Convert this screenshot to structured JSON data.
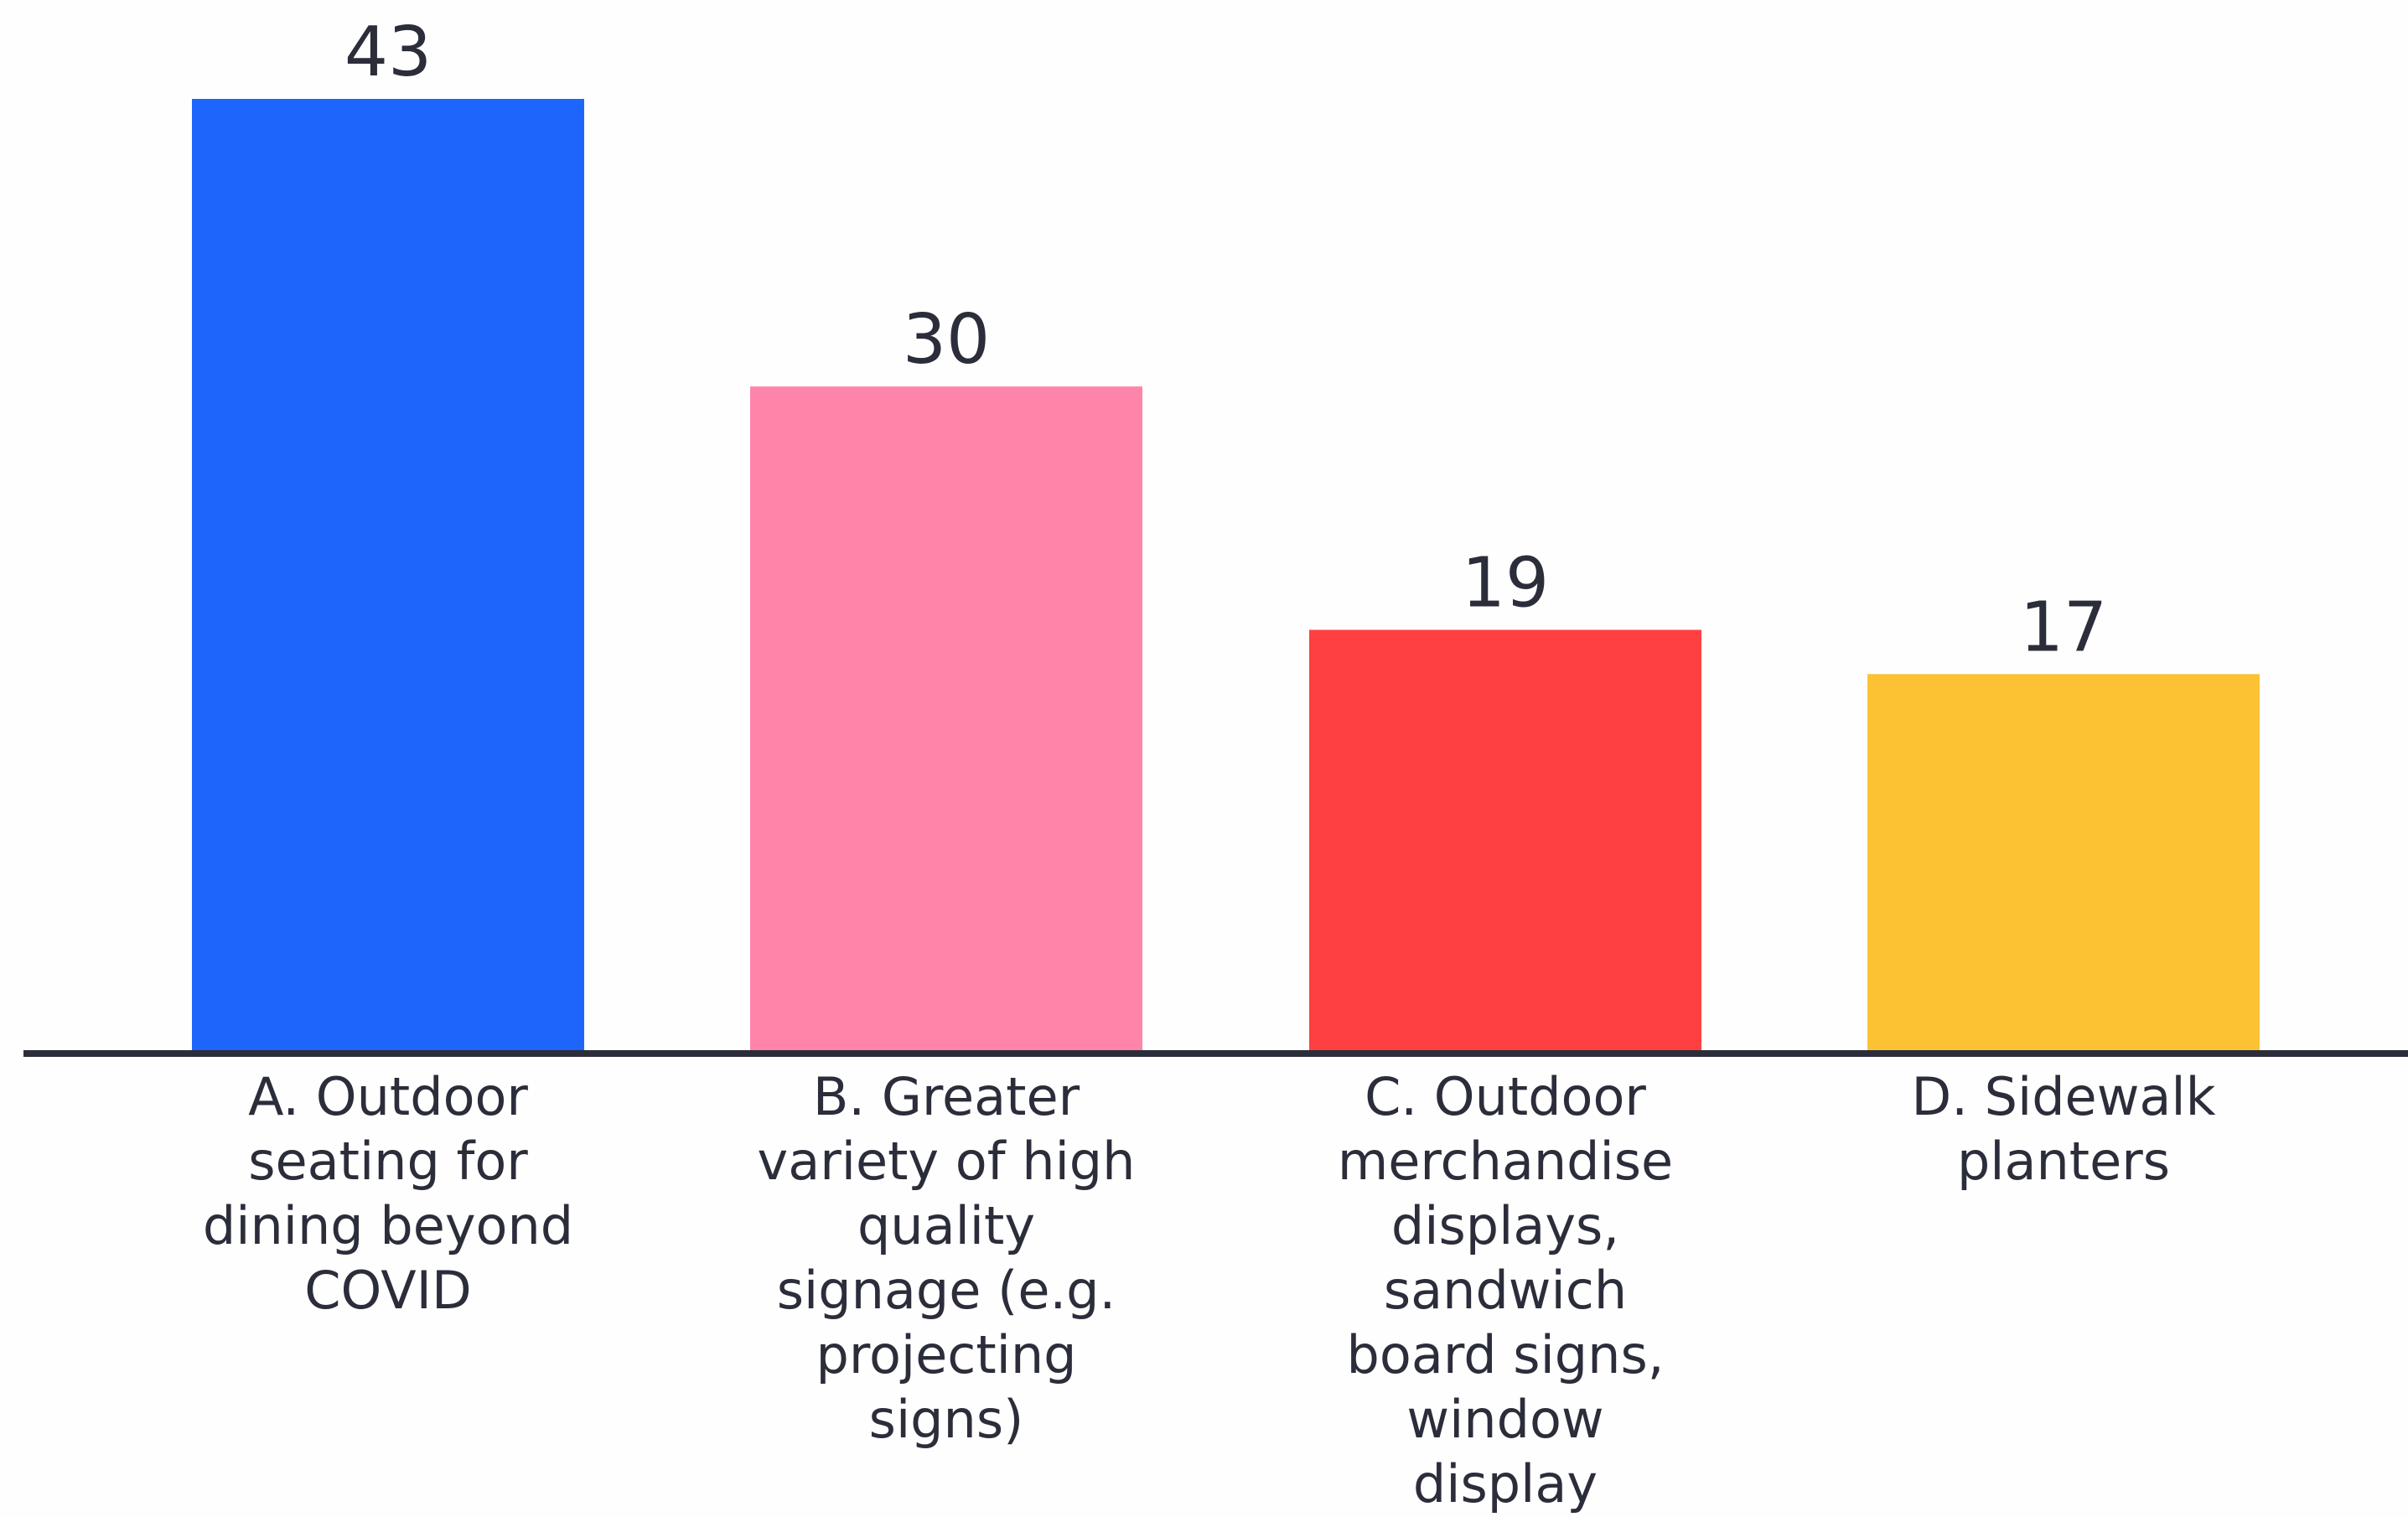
{
  "chart_data": {
    "type": "bar",
    "categories": [
      "A. Outdoor\nseating for\ndining beyond\nCOVID",
      "B. Greater\nvariety of high\nquality\nsignage (e.g.\nprojecting\nsigns)",
      "C. Outdoor\nmerchandise\ndisplays,\nsandwich\nboard signs,\nwindow\ndisplay",
      "D. Sidewalk\nplanters"
    ],
    "values": [
      43,
      30,
      19,
      17
    ],
    "colors": [
      "#1e66fb",
      "#ff84a9",
      "#ff4040",
      "#fcc234"
    ],
    "ylim": [
      0,
      43
    ],
    "grid": false,
    "legend": "none",
    "value_labels": true
  }
}
